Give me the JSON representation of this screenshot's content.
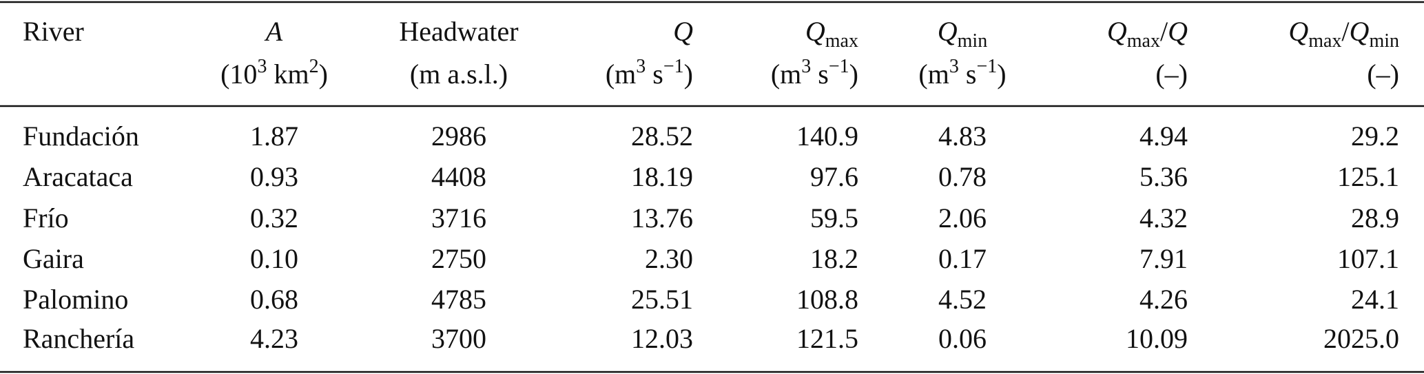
{
  "table": {
    "columns": [
      {
        "line1": [
          {
            "text": "River"
          }
        ]
      },
      {
        "line1": [
          {
            "text": "A",
            "style": "italic"
          }
        ],
        "line2": [
          {
            "text": "(10"
          },
          {
            "text": "3",
            "style": "sup"
          },
          {
            "text": " km"
          },
          {
            "text": "2",
            "style": "sup"
          },
          {
            "text": ")"
          }
        ]
      },
      {
        "line1": [
          {
            "text": "Headwater"
          }
        ],
        "line2": [
          {
            "text": "(m a.s.l.)"
          }
        ]
      },
      {
        "line1": [
          {
            "text": "Q",
            "style": "italic"
          }
        ],
        "line2": [
          {
            "text": "(m"
          },
          {
            "text": "3",
            "style": "sup"
          },
          {
            "text": " s"
          },
          {
            "text": "−1",
            "style": "sup"
          },
          {
            "text": ")"
          }
        ]
      },
      {
        "line1": [
          {
            "text": "Q",
            "style": "italic"
          },
          {
            "text": "max",
            "style": "sub"
          }
        ],
        "line2": [
          {
            "text": "(m"
          },
          {
            "text": "3",
            "style": "sup"
          },
          {
            "text": " s"
          },
          {
            "text": "−1",
            "style": "sup"
          },
          {
            "text": ")"
          }
        ]
      },
      {
        "line1": [
          {
            "text": "Q",
            "style": "italic"
          },
          {
            "text": "min",
            "style": "sub"
          }
        ],
        "line2": [
          {
            "text": "(m"
          },
          {
            "text": "3",
            "style": "sup"
          },
          {
            "text": " s"
          },
          {
            "text": "−1",
            "style": "sup"
          },
          {
            "text": ")"
          }
        ]
      },
      {
        "line1": [
          {
            "text": "Q",
            "style": "italic"
          },
          {
            "text": "max",
            "style": "sub"
          },
          {
            "text": "/"
          },
          {
            "text": "Q",
            "style": "italic"
          }
        ],
        "line2": [
          {
            "text": "(–)"
          }
        ]
      },
      {
        "line1": [
          {
            "text": "Q",
            "style": "italic"
          },
          {
            "text": "max",
            "style": "sub"
          },
          {
            "text": "/"
          },
          {
            "text": "Q",
            "style": "italic"
          },
          {
            "text": "min",
            "style": "sub"
          }
        ],
        "line2": [
          {
            "text": "(–)"
          }
        ]
      }
    ],
    "rows": [
      [
        "Fundación",
        "1.87",
        "2986",
        "28.52",
        "140.9",
        "4.83",
        "4.94",
        "29.2"
      ],
      [
        "Aracataca",
        "0.93",
        "4408",
        "18.19",
        "97.6",
        "0.78",
        "5.36",
        "125.1"
      ],
      [
        "Frío",
        "0.32",
        "3716",
        "13.76",
        "59.5",
        "2.06",
        "4.32",
        "28.9"
      ],
      [
        "Gaira",
        "0.10",
        "2750",
        "2.30",
        "18.2",
        "0.17",
        "7.91",
        "107.1"
      ],
      [
        "Palomino",
        "0.68",
        "4785",
        "25.51",
        "108.8",
        "4.52",
        "4.26",
        "24.1"
      ],
      [
        "Ranchería",
        "4.23",
        "3700",
        "12.03",
        "121.5",
        "0.06",
        "10.09",
        "2025.0"
      ]
    ]
  }
}
